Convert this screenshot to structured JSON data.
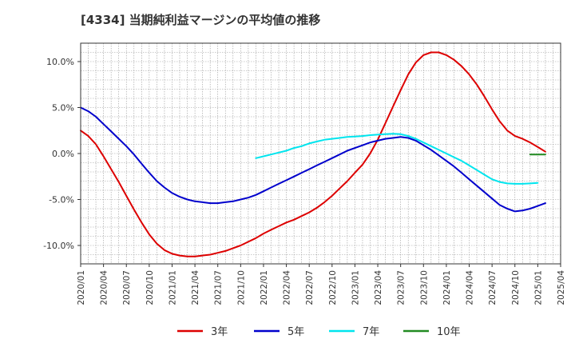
{
  "chart_data": {
    "type": "line",
    "title": "[4334]  当期純利益マージンの平均値の推移",
    "xlabel": "",
    "ylabel": "",
    "ylim": [
      -12,
      12
    ],
    "y_ticks": [
      {
        "value": 10,
        "label": "10.0%"
      },
      {
        "value": 5,
        "label": "5.0%"
      },
      {
        "value": 0,
        "label": "0.0%"
      },
      {
        "value": -5,
        "label": "-5.0%"
      },
      {
        "value": -10,
        "label": "-10.0%"
      }
    ],
    "x_ticks": [
      "2020/01",
      "2020/04",
      "2020/07",
      "2020/10",
      "2021/01",
      "2021/04",
      "2021/07",
      "2021/10",
      "2022/01",
      "2022/04",
      "2022/07",
      "2022/10",
      "2023/01",
      "2023/04",
      "2023/07",
      "2023/10",
      "2024/01",
      "2024/04",
      "2024/07",
      "2024/10",
      "2025/01",
      "2025/04"
    ],
    "grid": true,
    "legend_position": "bottom",
    "series": [
      {
        "name": "3年",
        "color": "#dd0000",
        "points": [
          [
            "2020/01",
            2.5
          ],
          [
            "2020/02",
            1.9
          ],
          [
            "2020/03",
            1.0
          ],
          [
            "2020/04",
            -0.3
          ],
          [
            "2020/05",
            -1.7
          ],
          [
            "2020/06",
            -3.1
          ],
          [
            "2020/07",
            -4.6
          ],
          [
            "2020/08",
            -6.1
          ],
          [
            "2020/09",
            -7.5
          ],
          [
            "2020/10",
            -8.8
          ],
          [
            "2020/11",
            -9.8
          ],
          [
            "2020/12",
            -10.5
          ],
          [
            "2021/01",
            -10.9
          ],
          [
            "2021/02",
            -11.1
          ],
          [
            "2021/03",
            -11.2
          ],
          [
            "2021/04",
            -11.2
          ],
          [
            "2021/05",
            -11.1
          ],
          [
            "2021/06",
            -11.0
          ],
          [
            "2021/07",
            -10.8
          ],
          [
            "2021/08",
            -10.6
          ],
          [
            "2021/09",
            -10.3
          ],
          [
            "2021/10",
            -10.0
          ],
          [
            "2021/11",
            -9.6
          ],
          [
            "2021/12",
            -9.2
          ],
          [
            "2022/01",
            -8.7
          ],
          [
            "2022/02",
            -8.3
          ],
          [
            "2022/03",
            -7.9
          ],
          [
            "2022/04",
            -7.5
          ],
          [
            "2022/05",
            -7.2
          ],
          [
            "2022/06",
            -6.8
          ],
          [
            "2022/07",
            -6.4
          ],
          [
            "2022/08",
            -5.9
          ],
          [
            "2022/09",
            -5.3
          ],
          [
            "2022/10",
            -4.6
          ],
          [
            "2022/11",
            -3.8
          ],
          [
            "2022/12",
            -3.0
          ],
          [
            "2023/01",
            -2.1
          ],
          [
            "2023/02",
            -1.2
          ],
          [
            "2023/03",
            0.0
          ],
          [
            "2023/04",
            1.5
          ],
          [
            "2023/05",
            3.3
          ],
          [
            "2023/06",
            5.1
          ],
          [
            "2023/07",
            6.9
          ],
          [
            "2023/08",
            8.6
          ],
          [
            "2023/09",
            9.9
          ],
          [
            "2023/10",
            10.7
          ],
          [
            "2023/11",
            11.0
          ],
          [
            "2023/12",
            11.0
          ],
          [
            "2024/01",
            10.7
          ],
          [
            "2024/02",
            10.2
          ],
          [
            "2024/03",
            9.5
          ],
          [
            "2024/04",
            8.6
          ],
          [
            "2024/05",
            7.5
          ],
          [
            "2024/06",
            6.2
          ],
          [
            "2024/07",
            4.8
          ],
          [
            "2024/08",
            3.5
          ],
          [
            "2024/09",
            2.5
          ],
          [
            "2024/10",
            1.9
          ],
          [
            "2024/11",
            1.6
          ],
          [
            "2024/12",
            1.2
          ],
          [
            "2025/01",
            0.7
          ],
          [
            "2025/02",
            0.2
          ]
        ]
      },
      {
        "name": "5年",
        "color": "#0000cc",
        "points": [
          [
            "2020/01",
            5.0
          ],
          [
            "2020/02",
            4.6
          ],
          [
            "2020/03",
            4.0
          ],
          [
            "2020/04",
            3.2
          ],
          [
            "2020/05",
            2.4
          ],
          [
            "2020/06",
            1.6
          ],
          [
            "2020/07",
            0.8
          ],
          [
            "2020/08",
            -0.1
          ],
          [
            "2020/09",
            -1.1
          ],
          [
            "2020/10",
            -2.1
          ],
          [
            "2020/11",
            -3.0
          ],
          [
            "2020/12",
            -3.7
          ],
          [
            "2021/01",
            -4.3
          ],
          [
            "2021/02",
            -4.7
          ],
          [
            "2021/03",
            -5.0
          ],
          [
            "2021/04",
            -5.2
          ],
          [
            "2021/05",
            -5.3
          ],
          [
            "2021/06",
            -5.4
          ],
          [
            "2021/07",
            -5.4
          ],
          [
            "2021/08",
            -5.3
          ],
          [
            "2021/09",
            -5.2
          ],
          [
            "2021/10",
            -5.0
          ],
          [
            "2021/11",
            -4.8
          ],
          [
            "2021/12",
            -4.5
          ],
          [
            "2022/01",
            -4.1
          ],
          [
            "2022/02",
            -3.7
          ],
          [
            "2022/03",
            -3.3
          ],
          [
            "2022/04",
            -2.9
          ],
          [
            "2022/05",
            -2.5
          ],
          [
            "2022/06",
            -2.1
          ],
          [
            "2022/07",
            -1.7
          ],
          [
            "2022/08",
            -1.3
          ],
          [
            "2022/09",
            -0.9
          ],
          [
            "2022/10",
            -0.5
          ],
          [
            "2022/11",
            -0.1
          ],
          [
            "2022/12",
            0.3
          ],
          [
            "2023/01",
            0.6
          ],
          [
            "2023/02",
            0.9
          ],
          [
            "2023/03",
            1.2
          ],
          [
            "2023/04",
            1.4
          ],
          [
            "2023/05",
            1.6
          ],
          [
            "2023/06",
            1.7
          ],
          [
            "2023/07",
            1.8
          ],
          [
            "2023/08",
            1.7
          ],
          [
            "2023/09",
            1.4
          ],
          [
            "2023/10",
            0.9
          ],
          [
            "2023/11",
            0.4
          ],
          [
            "2023/12",
            -0.2
          ],
          [
            "2024/01",
            -0.8
          ],
          [
            "2024/02",
            -1.4
          ],
          [
            "2024/03",
            -2.1
          ],
          [
            "2024/04",
            -2.8
          ],
          [
            "2024/05",
            -3.5
          ],
          [
            "2024/06",
            -4.2
          ],
          [
            "2024/07",
            -4.9
          ],
          [
            "2024/08",
            -5.6
          ],
          [
            "2024/09",
            -6.0
          ],
          [
            "2024/10",
            -6.3
          ],
          [
            "2024/11",
            -6.2
          ],
          [
            "2024/12",
            -6.0
          ],
          [
            "2025/01",
            -5.7
          ],
          [
            "2025/02",
            -5.4
          ]
        ]
      },
      {
        "name": "7年",
        "color": "#00e5ee",
        "points": [
          [
            "2021/12",
            -0.5
          ],
          [
            "2022/01",
            -0.3
          ],
          [
            "2022/02",
            -0.1
          ],
          [
            "2022/03",
            0.1
          ],
          [
            "2022/04",
            0.3
          ],
          [
            "2022/05",
            0.6
          ],
          [
            "2022/06",
            0.8
          ],
          [
            "2022/07",
            1.1
          ],
          [
            "2022/08",
            1.3
          ],
          [
            "2022/09",
            1.5
          ],
          [
            "2022/10",
            1.6
          ],
          [
            "2022/11",
            1.7
          ],
          [
            "2022/12",
            1.8
          ],
          [
            "2023/01",
            1.85
          ],
          [
            "2023/02",
            1.9
          ],
          [
            "2023/03",
            2.0
          ],
          [
            "2023/04",
            2.05
          ],
          [
            "2023/05",
            2.1
          ],
          [
            "2023/06",
            2.15
          ],
          [
            "2023/07",
            2.1
          ],
          [
            "2023/08",
            1.9
          ],
          [
            "2023/09",
            1.6
          ],
          [
            "2023/10",
            1.2
          ],
          [
            "2023/11",
            0.8
          ],
          [
            "2023/12",
            0.4
          ],
          [
            "2024/01",
            0.0
          ],
          [
            "2024/02",
            -0.4
          ],
          [
            "2024/03",
            -0.8
          ],
          [
            "2024/04",
            -1.3
          ],
          [
            "2024/05",
            -1.8
          ],
          [
            "2024/06",
            -2.3
          ],
          [
            "2024/07",
            -2.8
          ],
          [
            "2024/08",
            -3.1
          ],
          [
            "2024/09",
            -3.25
          ],
          [
            "2024/10",
            -3.3
          ],
          [
            "2024/11",
            -3.3
          ],
          [
            "2024/12",
            -3.25
          ],
          [
            "2025/01",
            -3.2
          ]
        ]
      },
      {
        "name": "10年",
        "color": "#228b22",
        "points": [
          [
            "2024/12",
            -0.1
          ],
          [
            "2025/01",
            -0.1
          ],
          [
            "2025/02",
            -0.1
          ]
        ]
      }
    ]
  }
}
